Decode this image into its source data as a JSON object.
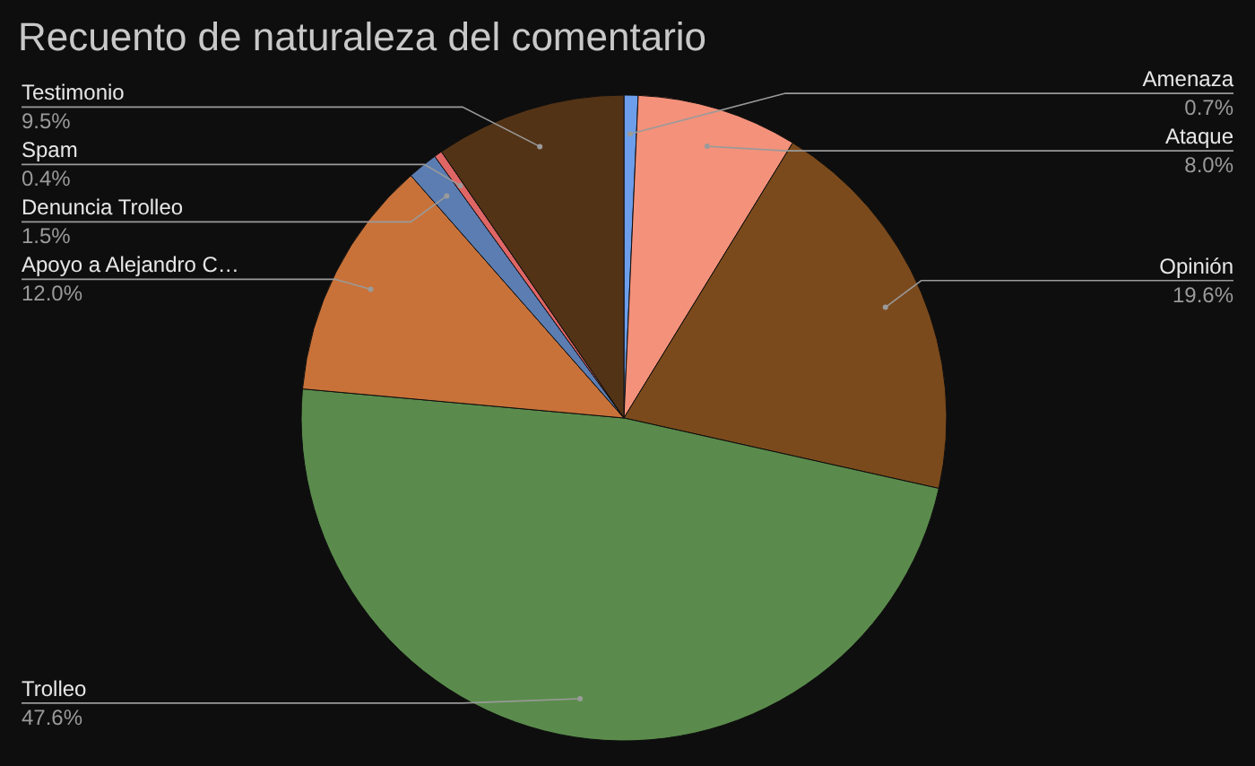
{
  "chart_data": {
    "type": "pie",
    "title": "Recuento de naturaleza del comentario",
    "categories": [
      "Amenaza",
      "Ataque",
      "Opinión",
      "Trolleo",
      "Apoyo a Alejandro C…",
      "Denuncia Trolleo",
      "Spam",
      "Testimonio"
    ],
    "values": [
      0.7,
      8.0,
      19.6,
      47.6,
      12.0,
      1.5,
      0.4,
      9.5
    ],
    "value_labels": [
      "0.7%",
      "8.0%",
      "19.6%",
      "47.6%",
      "12.0%",
      "1.5%",
      "0.4%",
      "9.5%"
    ],
    "colors": [
      "#6d9eeb",
      "#f4917a",
      "#7b4a1c",
      "#5a8b4c",
      "#c8723a",
      "#5b7db1",
      "#e06666",
      "#533316"
    ]
  }
}
